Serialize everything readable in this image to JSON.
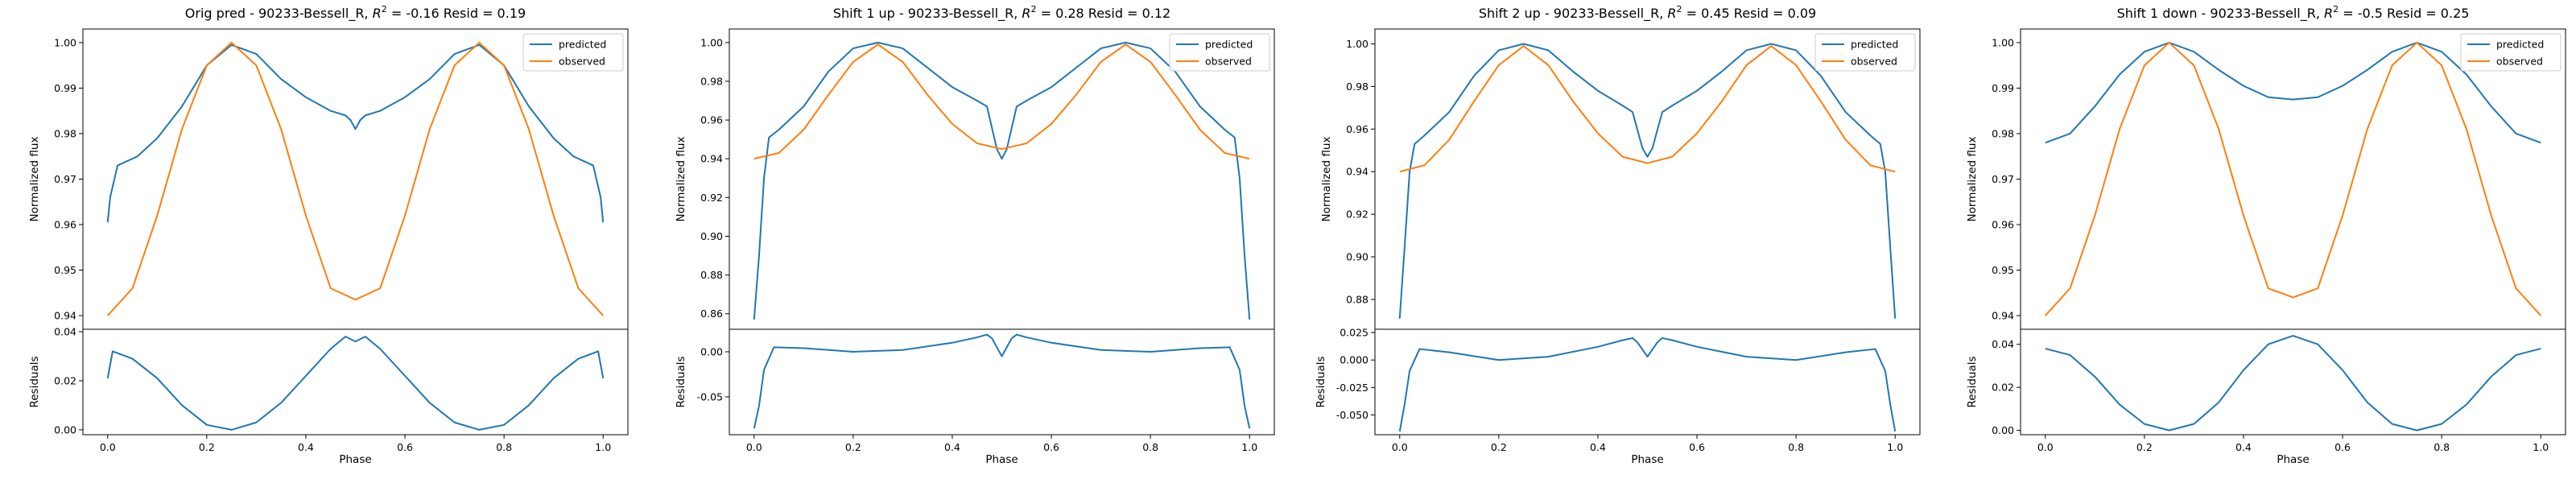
{
  "colors": {
    "predicted": "#1f77b4",
    "observed": "#ff7f0e",
    "axes": "#000000"
  },
  "chart_data": [
    {
      "type": "line",
      "title": "Orig pred - 90233-Bessell_R, R² = -0.16 Resid = 0.19",
      "title_parts": [
        "Orig pred - 90233-Bessell_R, ",
        "R",
        "2",
        " = -0.16 Resid = 0.19"
      ],
      "xlabel": "Phase",
      "ylabel": "Normalized flux",
      "resid_ylabel": "Residuals",
      "xlim": [
        -0.05,
        1.05
      ],
      "xticks": [
        "0.0",
        "0.2",
        "0.4",
        "0.6",
        "0.8",
        "1.0"
      ],
      "ylim": [
        0.937,
        1.003
      ],
      "yticks": [
        "0.94",
        "0.95",
        "0.96",
        "0.97",
        "0.98",
        "0.99",
        "1.00"
      ],
      "resid_ylim": [
        -0.002,
        0.041
      ],
      "resid_yticks": [
        "0.00",
        "0.02",
        "0.04"
      ],
      "legend": {
        "position": "upper right",
        "entries": [
          "predicted",
          "observed"
        ]
      },
      "series": [
        {
          "name": "predicted",
          "x": [
            0.0,
            0.005,
            0.02,
            0.06,
            0.1,
            0.15,
            0.2,
            0.25,
            0.3,
            0.35,
            0.4,
            0.45,
            0.48,
            0.49,
            0.5,
            0.51,
            0.52,
            0.55,
            0.6,
            0.65,
            0.7,
            0.75,
            0.8,
            0.85,
            0.9,
            0.94,
            0.98,
            0.995,
            1.0
          ],
          "y": [
            0.9605,
            0.966,
            0.973,
            0.975,
            0.979,
            0.986,
            0.995,
            0.9995,
            0.9975,
            0.992,
            0.988,
            0.985,
            0.984,
            0.983,
            0.981,
            0.983,
            0.984,
            0.985,
            0.988,
            0.992,
            0.9975,
            0.9995,
            0.995,
            0.986,
            0.979,
            0.975,
            0.973,
            0.966,
            0.9605
          ]
        },
        {
          "name": "observed",
          "x": [
            0.0,
            0.05,
            0.1,
            0.15,
            0.2,
            0.25,
            0.3,
            0.35,
            0.4,
            0.45,
            0.5,
            0.55,
            0.6,
            0.65,
            0.7,
            0.75,
            0.8,
            0.85,
            0.9,
            0.95,
            1.0
          ],
          "y": [
            0.94,
            0.946,
            0.962,
            0.981,
            0.995,
            1.0,
            0.995,
            0.981,
            0.962,
            0.946,
            0.9435,
            0.946,
            0.962,
            0.981,
            0.995,
            1.0,
            0.995,
            0.981,
            0.962,
            0.946,
            0.94
          ]
        }
      ],
      "residuals": {
        "x": [
          0.0,
          0.01,
          0.05,
          0.1,
          0.15,
          0.2,
          0.25,
          0.3,
          0.35,
          0.4,
          0.45,
          0.48,
          0.5,
          0.52,
          0.55,
          0.6,
          0.65,
          0.7,
          0.75,
          0.8,
          0.85,
          0.9,
          0.95,
          0.99,
          1.0
        ],
        "y": [
          0.021,
          0.032,
          0.029,
          0.021,
          0.01,
          0.002,
          0.0,
          0.003,
          0.011,
          0.022,
          0.033,
          0.038,
          0.036,
          0.038,
          0.033,
          0.022,
          0.011,
          0.003,
          0.0,
          0.002,
          0.01,
          0.021,
          0.029,
          0.032,
          0.021
        ]
      }
    },
    {
      "type": "line",
      "title": "Shift 1 up - 90233-Bessell_R, R² = 0.28 Resid = 0.12",
      "title_parts": [
        "Shift 1 up - 90233-Bessell_R, ",
        "R",
        "2",
        " = 0.28 Resid = 0.12"
      ],
      "xlabel": "Phase",
      "ylabel": "Normalized flux",
      "resid_ylabel": "Residuals",
      "xlim": [
        -0.05,
        1.05
      ],
      "xticks": [
        "0.0",
        "0.2",
        "0.4",
        "0.6",
        "0.8",
        "1.0"
      ],
      "ylim": [
        0.852,
        1.007
      ],
      "yticks": [
        "0.86",
        "0.88",
        "0.90",
        "0.92",
        "0.94",
        "0.96",
        "0.98",
        "1.00"
      ],
      "resid_ylim": [
        -0.092,
        0.025
      ],
      "resid_yticks": [
        "-0.05",
        "0.00"
      ],
      "legend": {
        "position": "upper right",
        "entries": [
          "predicted",
          "observed"
        ]
      },
      "series": [
        {
          "name": "predicted",
          "x": [
            0.0,
            0.01,
            0.02,
            0.03,
            0.05,
            0.1,
            0.15,
            0.2,
            0.25,
            0.3,
            0.35,
            0.4,
            0.45,
            0.47,
            0.49,
            0.5,
            0.51,
            0.53,
            0.55,
            0.6,
            0.65,
            0.7,
            0.75,
            0.8,
            0.85,
            0.9,
            0.95,
            0.97,
            0.98,
            0.99,
            1.0
          ],
          "y": [
            0.857,
            0.89,
            0.93,
            0.951,
            0.955,
            0.967,
            0.985,
            0.997,
            1.0,
            0.997,
            0.987,
            0.977,
            0.97,
            0.967,
            0.945,
            0.94,
            0.945,
            0.967,
            0.97,
            0.977,
            0.987,
            0.997,
            1.0,
            0.997,
            0.985,
            0.967,
            0.955,
            0.951,
            0.93,
            0.89,
            0.857
          ]
        },
        {
          "name": "observed",
          "x": [
            0.0,
            0.05,
            0.1,
            0.15,
            0.2,
            0.25,
            0.3,
            0.35,
            0.4,
            0.45,
            0.5,
            0.55,
            0.6,
            0.65,
            0.7,
            0.75,
            0.8,
            0.85,
            0.9,
            0.95,
            1.0
          ],
          "y": [
            0.94,
            0.943,
            0.955,
            0.973,
            0.99,
            0.999,
            0.99,
            0.973,
            0.958,
            0.948,
            0.945,
            0.948,
            0.958,
            0.973,
            0.99,
            0.999,
            0.99,
            0.973,
            0.955,
            0.943,
            0.94
          ]
        }
      ],
      "residuals": {
        "x": [
          0.0,
          0.01,
          0.02,
          0.04,
          0.1,
          0.2,
          0.3,
          0.4,
          0.45,
          0.47,
          0.48,
          0.5,
          0.52,
          0.53,
          0.55,
          0.6,
          0.7,
          0.8,
          0.9,
          0.96,
          0.98,
          0.99,
          1.0
        ],
        "y": [
          -0.085,
          -0.06,
          -0.02,
          0.005,
          0.004,
          0.0,
          0.002,
          0.01,
          0.016,
          0.019,
          0.015,
          -0.005,
          0.015,
          0.019,
          0.016,
          0.01,
          0.002,
          0.0,
          0.004,
          0.005,
          -0.02,
          -0.06,
          -0.085
        ]
      }
    },
    {
      "type": "line",
      "title": "Shift 2 up - 90233-Bessell_R, R² = 0.45 Resid = 0.09",
      "title_parts": [
        "Shift 2 up - 90233-Bessell_R, ",
        "R",
        "2",
        " = 0.45 Resid = 0.09"
      ],
      "xlabel": "Phase",
      "ylabel": "Normalized flux",
      "resid_ylabel": "Residuals",
      "xlim": [
        -0.05,
        1.05
      ],
      "xticks": [
        "0.0",
        "0.2",
        "0.4",
        "0.6",
        "0.8",
        "1.0"
      ],
      "ylim": [
        0.866,
        1.007
      ],
      "yticks": [
        "0.88",
        "0.90",
        "0.92",
        "0.94",
        "0.96",
        "0.98",
        "1.00"
      ],
      "resid_ylim": [
        -0.068,
        0.028
      ],
      "resid_yticks": [
        "-0.050",
        "-0.025",
        "0.000",
        "0.025"
      ],
      "legend": {
        "position": "upper right",
        "entries": [
          "predicted",
          "observed"
        ]
      },
      "series": [
        {
          "name": "predicted",
          "x": [
            0.0,
            0.01,
            0.02,
            0.03,
            0.05,
            0.1,
            0.15,
            0.2,
            0.25,
            0.3,
            0.35,
            0.4,
            0.45,
            0.47,
            0.49,
            0.5,
            0.51,
            0.53,
            0.55,
            0.6,
            0.65,
            0.7,
            0.75,
            0.8,
            0.85,
            0.9,
            0.95,
            0.97,
            0.98,
            0.99,
            1.0
          ],
          "y": [
            0.871,
            0.905,
            0.94,
            0.953,
            0.957,
            0.968,
            0.985,
            0.997,
            1.0,
            0.997,
            0.987,
            0.978,
            0.971,
            0.968,
            0.951,
            0.947,
            0.951,
            0.968,
            0.971,
            0.978,
            0.987,
            0.997,
            1.0,
            0.997,
            0.985,
            0.968,
            0.957,
            0.953,
            0.94,
            0.905,
            0.871
          ]
        },
        {
          "name": "observed",
          "x": [
            0.0,
            0.05,
            0.1,
            0.15,
            0.2,
            0.25,
            0.3,
            0.35,
            0.4,
            0.45,
            0.5,
            0.55,
            0.6,
            0.65,
            0.7,
            0.75,
            0.8,
            0.85,
            0.9,
            0.95,
            1.0
          ],
          "y": [
            0.94,
            0.943,
            0.955,
            0.973,
            0.99,
            0.999,
            0.99,
            0.973,
            0.958,
            0.947,
            0.944,
            0.947,
            0.958,
            0.973,
            0.99,
            0.999,
            0.99,
            0.973,
            0.955,
            0.943,
            0.94
          ]
        }
      ],
      "residuals": {
        "x": [
          0.0,
          0.01,
          0.02,
          0.04,
          0.1,
          0.2,
          0.3,
          0.4,
          0.45,
          0.47,
          0.48,
          0.5,
          0.52,
          0.53,
          0.55,
          0.6,
          0.7,
          0.8,
          0.9,
          0.96,
          0.98,
          0.99,
          1.0
        ],
        "y": [
          -0.065,
          -0.04,
          -0.01,
          0.01,
          0.007,
          0.0,
          0.003,
          0.012,
          0.018,
          0.02,
          0.016,
          0.003,
          0.016,
          0.02,
          0.018,
          0.012,
          0.003,
          0.0,
          0.007,
          0.01,
          -0.01,
          -0.04,
          -0.065
        ]
      }
    },
    {
      "type": "line",
      "title": "Shift 1 down - 90233-Bessell_R, R² = -0.5 Resid = 0.25",
      "title_parts": [
        "Shift 1 down - 90233-Bessell_R, ",
        "R",
        "2",
        " = -0.5 Resid = 0.25"
      ],
      "xlabel": "Phase",
      "ylabel": "Normalized flux",
      "resid_ylabel": "Residuals",
      "xlim": [
        -0.05,
        1.05
      ],
      "xticks": [
        "0.0",
        "0.2",
        "0.4",
        "0.6",
        "0.8",
        "1.0"
      ],
      "ylim": [
        0.937,
        1.003
      ],
      "yticks": [
        "0.94",
        "0.95",
        "0.96",
        "0.97",
        "0.98",
        "0.99",
        "1.00"
      ],
      "resid_ylim": [
        -0.002,
        0.047
      ],
      "resid_yticks": [
        "0.00",
        "0.02",
        "0.04"
      ],
      "legend": {
        "position": "upper right",
        "entries": [
          "predicted",
          "observed"
        ]
      },
      "series": [
        {
          "name": "predicted",
          "x": [
            0.0,
            0.05,
            0.1,
            0.15,
            0.2,
            0.25,
            0.3,
            0.35,
            0.4,
            0.45,
            0.5,
            0.55,
            0.6,
            0.65,
            0.7,
            0.75,
            0.8,
            0.85,
            0.9,
            0.95,
            1.0
          ],
          "y": [
            0.978,
            0.98,
            0.986,
            0.993,
            0.998,
            1.0,
            0.998,
            0.994,
            0.9905,
            0.988,
            0.9875,
            0.988,
            0.9905,
            0.994,
            0.998,
            1.0,
            0.998,
            0.993,
            0.986,
            0.98,
            0.978
          ]
        },
        {
          "name": "observed",
          "x": [
            0.0,
            0.05,
            0.1,
            0.15,
            0.2,
            0.25,
            0.3,
            0.35,
            0.4,
            0.45,
            0.5,
            0.55,
            0.6,
            0.65,
            0.7,
            0.75,
            0.8,
            0.85,
            0.9,
            0.95,
            1.0
          ],
          "y": [
            0.94,
            0.946,
            0.962,
            0.981,
            0.995,
            1.0,
            0.995,
            0.981,
            0.962,
            0.946,
            0.944,
            0.946,
            0.962,
            0.981,
            0.995,
            1.0,
            0.995,
            0.981,
            0.962,
            0.946,
            0.94
          ]
        }
      ],
      "residuals": {
        "x": [
          0.0,
          0.05,
          0.1,
          0.15,
          0.2,
          0.25,
          0.3,
          0.35,
          0.4,
          0.45,
          0.5,
          0.55,
          0.6,
          0.65,
          0.7,
          0.75,
          0.8,
          0.85,
          0.9,
          0.95,
          1.0
        ],
        "y": [
          0.038,
          0.035,
          0.025,
          0.012,
          0.003,
          0.0,
          0.003,
          0.013,
          0.028,
          0.04,
          0.044,
          0.04,
          0.028,
          0.013,
          0.003,
          0.0,
          0.003,
          0.012,
          0.025,
          0.035,
          0.038
        ]
      }
    }
  ]
}
